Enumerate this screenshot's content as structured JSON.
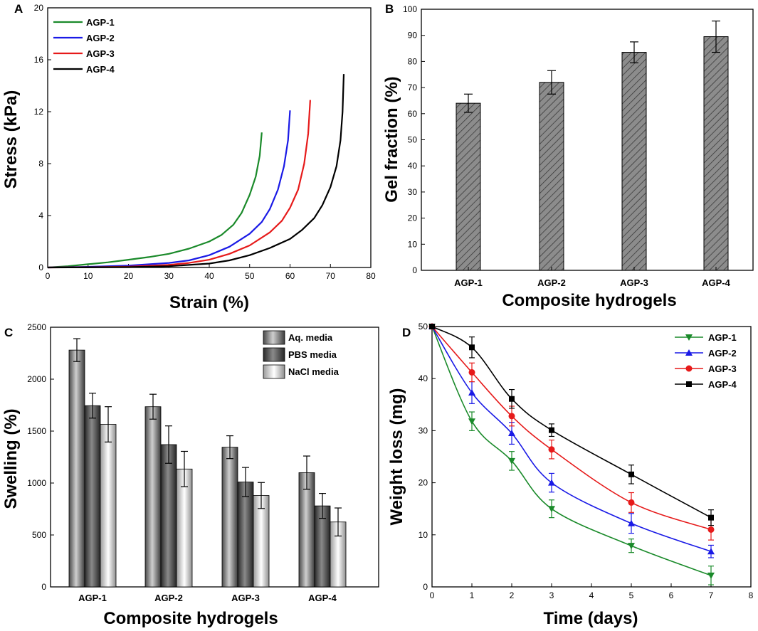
{
  "colors": {
    "AGP-1": "#1a8a2a",
    "AGP-2": "#1a1ae6",
    "AGP-3": "#e61a1a",
    "AGP-4": "#000000"
  },
  "chart_data": [
    {
      "panel": "A",
      "type": "line",
      "title": "",
      "xlabel": "Strain (%)",
      "ylabel": "Stress (kPa)",
      "xlim": [
        0,
        80
      ],
      "ylim": [
        0,
        20
      ],
      "xticks": [
        0,
        10,
        20,
        30,
        40,
        50,
        60,
        70,
        80
      ],
      "yticks": [
        0,
        4,
        8,
        12,
        16,
        20
      ],
      "legend_position": "top-left",
      "series": [
        {
          "name": "AGP-1",
          "x": [
            0,
            5,
            10,
            15,
            20,
            25,
            30,
            35,
            40,
            43,
            46,
            48,
            50,
            51.5,
            52.5,
            53
          ],
          "y": [
            0,
            0.1,
            0.25,
            0.4,
            0.6,
            0.8,
            1.05,
            1.45,
            2.0,
            2.5,
            3.3,
            4.2,
            5.6,
            7.0,
            8.6,
            10.4
          ]
        },
        {
          "name": "AGP-2",
          "x": [
            0,
            10,
            20,
            30,
            35,
            40,
            45,
            50,
            53,
            55,
            57,
            58.5,
            59.5,
            60
          ],
          "y": [
            0,
            0.05,
            0.15,
            0.35,
            0.55,
            0.95,
            1.6,
            2.6,
            3.5,
            4.5,
            6.0,
            7.8,
            9.8,
            12.1
          ]
        },
        {
          "name": "AGP-3",
          "x": [
            0,
            10,
            20,
            30,
            35,
            40,
            45,
            50,
            55,
            58,
            60,
            62,
            63.5,
            64.5,
            65
          ],
          "y": [
            0,
            0.02,
            0.06,
            0.2,
            0.35,
            0.6,
            1.05,
            1.7,
            2.7,
            3.6,
            4.6,
            6.0,
            8.0,
            10.3,
            12.9
          ]
        },
        {
          "name": "AGP-4",
          "x": [
            0,
            20,
            30,
            40,
            45,
            50,
            55,
            60,
            63,
            66,
            68,
            70,
            71.5,
            72.5,
            73,
            73.3
          ],
          "y": [
            0,
            0.03,
            0.1,
            0.3,
            0.55,
            0.95,
            1.5,
            2.2,
            2.9,
            3.8,
            4.8,
            6.2,
            7.8,
            9.8,
            12.0,
            14.9
          ]
        }
      ]
    },
    {
      "panel": "B",
      "type": "bar",
      "title": "",
      "xlabel": "Composite hydrogels",
      "ylabel": "Gel fraction (%)",
      "ylim": [
        0,
        100
      ],
      "yticks": [
        0,
        10,
        20,
        30,
        40,
        50,
        60,
        70,
        80,
        90,
        100
      ],
      "categories": [
        "AGP-1",
        "AGP-2",
        "AGP-3",
        "AGP-4"
      ],
      "values": [
        64,
        72,
        83.5,
        89.5
      ],
      "errors": [
        3.5,
        4.5,
        4,
        6
      ]
    },
    {
      "panel": "C",
      "type": "bar",
      "title": "",
      "xlabel": "Composite hydrogels",
      "ylabel": "Swelling (%)",
      "ylim": [
        0,
        2500
      ],
      "yticks": [
        0,
        500,
        1000,
        1500,
        2000,
        2500
      ],
      "categories": [
        "AGP-1",
        "AGP-2",
        "AGP-3",
        "AGP-4"
      ],
      "legend_position": "top-right",
      "series": [
        {
          "name": "Aq. media",
          "values": [
            2280,
            1735,
            1345,
            1100
          ],
          "errors": [
            110,
            120,
            110,
            160
          ]
        },
        {
          "name": "PBS media",
          "values": [
            1745,
            1370,
            1010,
            780
          ],
          "errors": [
            120,
            180,
            140,
            120
          ]
        },
        {
          "name": "NaCl media",
          "values": [
            1565,
            1135,
            880,
            625
          ],
          "errors": [
            170,
            170,
            125,
            135
          ]
        }
      ]
    },
    {
      "panel": "D",
      "type": "line",
      "title": "",
      "xlabel": "Time (days)",
      "ylabel": "Weight loss (mg)",
      "xlim": [
        0,
        8
      ],
      "ylim": [
        0,
        50
      ],
      "xticks": [
        0,
        1,
        2,
        3,
        4,
        5,
        6,
        7,
        8
      ],
      "yticks": [
        0,
        10,
        20,
        30,
        40,
        50
      ],
      "legend_position": "top-right",
      "series": [
        {
          "name": "AGP-1",
          "marker": "triangle-down",
          "x": [
            0,
            1,
            2,
            3,
            5,
            7
          ],
          "y": [
            50,
            31.8,
            24.2,
            15.0,
            7.9,
            2.2
          ],
          "errors": [
            0,
            1.8,
            1.8,
            1.7,
            1.3,
            1.8
          ]
        },
        {
          "name": "AGP-2",
          "marker": "triangle-up",
          "x": [
            0,
            1,
            2,
            3,
            5,
            7
          ],
          "y": [
            50,
            37.3,
            29.5,
            20.0,
            12.2,
            6.8
          ],
          "errors": [
            0,
            2.1,
            2.1,
            1.8,
            1.9,
            1.2
          ]
        },
        {
          "name": "AGP-3",
          "marker": "circle",
          "x": [
            0,
            1,
            2,
            3,
            5,
            7
          ],
          "y": [
            50,
            41.2,
            32.8,
            26.4,
            16.2,
            11.0
          ],
          "errors": [
            0,
            1.8,
            1.9,
            1.8,
            1.9,
            2.0
          ]
        },
        {
          "name": "AGP-4",
          "marker": "square",
          "x": [
            0,
            1,
            2,
            3,
            5,
            7
          ],
          "y": [
            50,
            46.0,
            36.1,
            30.1,
            21.6,
            13.3
          ],
          "errors": [
            0,
            2.0,
            1.8,
            1.2,
            1.8,
            1.5
          ]
        }
      ]
    }
  ]
}
